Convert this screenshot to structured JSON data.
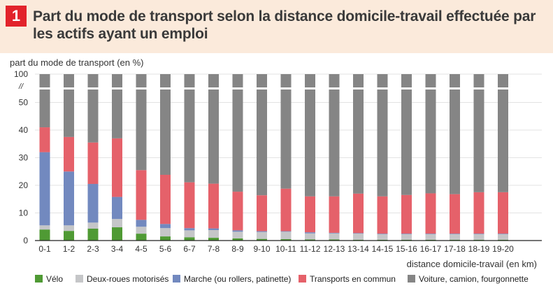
{
  "badge": "1",
  "title": "Part du mode de transport selon la distance domicile-travail effectuée par les actifs ayant un emploi",
  "colors": {
    "velo": "#4f9a34",
    "deux_roues": "#c5c6c8",
    "marche": "#7289bf",
    "transports_commun": "#e5616a",
    "voiture": "#858585",
    "header_bg": "#fbeadb",
    "badge": "#e2232b"
  },
  "chart_data": {
    "type": "bar",
    "stacked": true,
    "title": "Part du mode de transport selon la distance domicile-travail effectuée par les actifs ayant un emploi",
    "ylabel": "part du mode de transport (en %)",
    "xlabel": "distance domicile-travail (en km)",
    "ylim": [
      0,
      100
    ],
    "axis_break": "between 50 and 100",
    "y_ticks": [
      "0",
      "10",
      "20",
      "30",
      "40",
      "50",
      "100"
    ],
    "y_break_mark": "//",
    "categories": [
      "0-1",
      "1-2",
      "2-3",
      "3-4",
      "4-5",
      "5-6",
      "6-7",
      "7-8",
      "8-9",
      "9-10",
      "10-11",
      "11-12",
      "12-13",
      "13-14",
      "14-15",
      "15-16",
      "16-17",
      "17-18",
      "18-19",
      "19-20"
    ],
    "series": [
      {
        "name": "Vélo",
        "key": "velo",
        "values": [
          4,
          3.5,
          4.3,
          4.8,
          2.5,
          1.5,
          1.2,
          1,
          0.8,
          0.6,
          0.5,
          0.4,
          0.4,
          0.3,
          0.3,
          0.3,
          0.3,
          0.3,
          0.3,
          0.3
        ]
      },
      {
        "name": "Deux-roues motorisés",
        "key": "deux_roues",
        "values": [
          1.5,
          2,
          2.2,
          3,
          2.5,
          3,
          2.5,
          2.8,
          2.4,
          2.5,
          2.7,
          2.2,
          2.2,
          2.2,
          2,
          2,
          2,
          2,
          2,
          2
        ]
      },
      {
        "name": "Marche (ou rollers, patinette)",
        "key": "marche",
        "values": [
          26.5,
          19.5,
          14,
          8,
          2.5,
          1.5,
          0.8,
          0.6,
          0.5,
          0.3,
          0.2,
          0.4,
          0.2,
          0.2,
          0.2,
          0.2,
          0.2,
          0.2,
          0.2,
          0.2
        ]
      },
      {
        "name": "Transports en commun",
        "key": "transports_commun",
        "values": [
          9,
          12.5,
          15,
          21.2,
          18,
          17.8,
          16.6,
          16.2,
          14,
          13,
          15.4,
          13,
          13.2,
          14.3,
          13.5,
          14,
          14.6,
          14.3,
          15,
          15
        ]
      },
      {
        "name": "Voiture, camion, fourgonnette",
        "key": "voiture",
        "values": [
          59,
          62.5,
          64.5,
          63,
          74.5,
          76.2,
          78.9,
          79.4,
          82.3,
          83.6,
          81.2,
          84,
          84,
          83,
          84,
          83.5,
          82.9,
          83.2,
          82.5,
          82.5
        ]
      }
    ],
    "legend_position": "bottom"
  }
}
